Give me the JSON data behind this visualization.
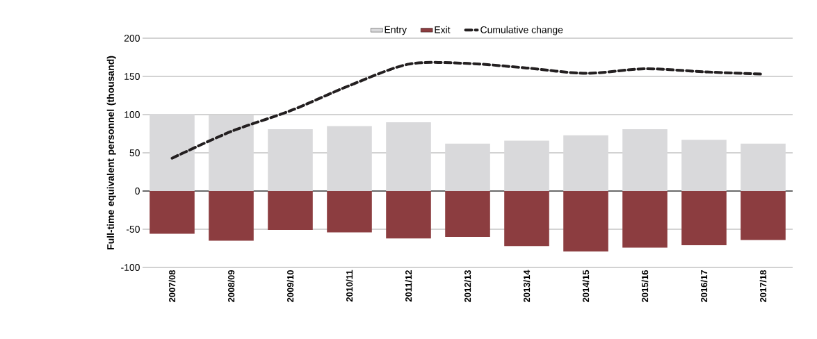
{
  "chart_data": {
    "type": "bar",
    "ylabel": "Full-time equivalent personnel (thousand)",
    "categories": [
      "2007/08",
      "2008/09",
      "2009/10",
      "2010/11",
      "2011/12",
      "2012/13",
      "2013/14",
      "2014/15",
      "2015/16",
      "2016/17",
      "2017/18"
    ],
    "series": [
      {
        "name": "Entry",
        "color": "#d9d9db",
        "values": [
          101,
          99,
          81,
          85,
          90,
          62,
          66,
          73,
          81,
          67,
          62
        ]
      },
      {
        "name": "Exit",
        "color": "#8c3d40",
        "values": [
          -56,
          -65,
          -51,
          -54,
          -62,
          -60,
          -72,
          -79,
          -74,
          -71,
          -64
        ]
      },
      {
        "name": "Cumulative change",
        "type": "line",
        "color": "#231f20",
        "line_style": "dashed",
        "values": [
          43,
          78,
          105,
          138,
          166,
          167,
          161,
          154,
          160,
          156,
          153
        ]
      }
    ],
    "stacked": true,
    "ylim": [
      -100,
      200
    ],
    "yticks": [
      -100,
      -50,
      0,
      50,
      100,
      150,
      200
    ],
    "grid": "y",
    "legend": "top"
  }
}
